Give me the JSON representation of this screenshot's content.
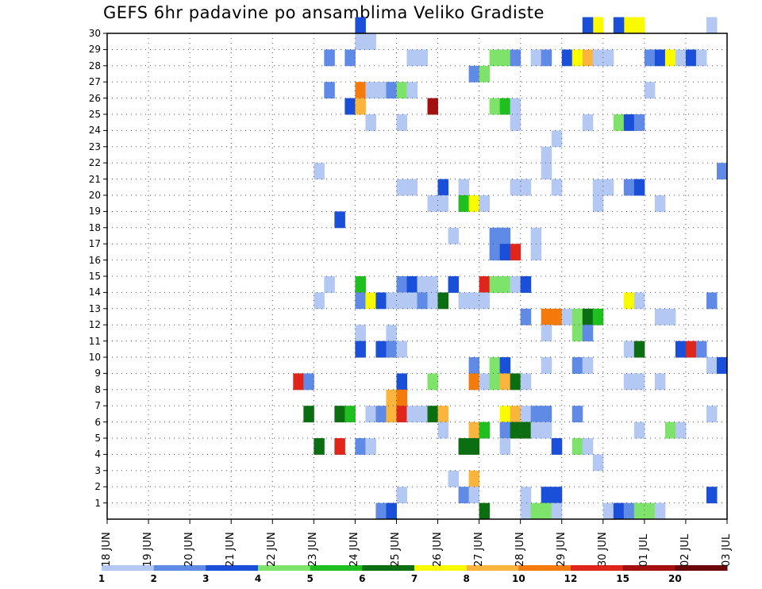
{
  "chart_data": {
    "type": "heatmap",
    "title": "GEFS 6hr padavine po ansamblima Veliko Gradiste",
    "xlabel": "",
    "ylabel": "",
    "x_ticks": [
      "18 JUN",
      "19 JUN",
      "20 JUN",
      "21 JUN",
      "22 JUN",
      "23 JUN",
      "24 JUN",
      "25 JUN",
      "26 JUN",
      "27 JUN",
      "28 JUN",
      "29 JUN",
      "30 JUN",
      "01 JUL",
      "02 JUL",
      "03 JUL"
    ],
    "y_ticks": [
      "1",
      "2",
      "3",
      "4",
      "5",
      "6",
      "7",
      "8",
      "9",
      "10",
      "11",
      "12",
      "13",
      "14",
      "15",
      "16",
      "17",
      "18",
      "19",
      "20",
      "21",
      "22",
      "23",
      "24",
      "25",
      "26",
      "27",
      "28",
      "29",
      "30"
    ],
    "y_range": [
      0,
      30
    ],
    "time_steps_per_day": 4,
    "time_steps_total": 60,
    "grid": true,
    "legend_position": "bottom",
    "legend": {
      "labels": [
        "1",
        "2",
        "3",
        "4",
        "5",
        "6",
        "7",
        "8",
        "10",
        "12",
        "15",
        "20"
      ],
      "colors": [
        "#b3c8f2",
        "#5f8ae6",
        "#1a4fd9",
        "#7de36a",
        "#1fbf1f",
        "#0b6f12",
        "#fbfb00",
        "#fbb43c",
        "#f57a0c",
        "#e0261a",
        "#a40f0f",
        "#6b0707"
      ]
    },
    "columns_note": "value entries: [time_step_index, member, precip_mm]; time step index 0 = 18 JUN 00Z, 4 steps per day",
    "values": [
      [
        24,
        30,
        3
      ],
      [
        25,
        29,
        1
      ],
      [
        24,
        29,
        1
      ],
      [
        51,
        30,
        7
      ],
      [
        50,
        30,
        7
      ],
      [
        49,
        30,
        3
      ],
      [
        47,
        30,
        7
      ],
      [
        46,
        30,
        3
      ],
      [
        58,
        30,
        1
      ],
      [
        21,
        28,
        2
      ],
      [
        23,
        28,
        2
      ],
      [
        29,
        28,
        1
      ],
      [
        30,
        28,
        1
      ],
      [
        37,
        28,
        4
      ],
      [
        38,
        28,
        4
      ],
      [
        39,
        28,
        2
      ],
      [
        41,
        28,
        1
      ],
      [
        42,
        28,
        2
      ],
      [
        44,
        28,
        3
      ],
      [
        45,
        28,
        7
      ],
      [
        46,
        28,
        8
      ],
      [
        47,
        28,
        1
      ],
      [
        48,
        28,
        1
      ],
      [
        52,
        28,
        2
      ],
      [
        53,
        28,
        3
      ],
      [
        54,
        28,
        7
      ],
      [
        55,
        28,
        1
      ],
      [
        56,
        28,
        3
      ],
      [
        57,
        28,
        1
      ],
      [
        35,
        27,
        2
      ],
      [
        36,
        27,
        4
      ],
      [
        21,
        26,
        2
      ],
      [
        24,
        26,
        11
      ],
      [
        25,
        26,
        1
      ],
      [
        26,
        26,
        1
      ],
      [
        27,
        26,
        2
      ],
      [
        28,
        26,
        4
      ],
      [
        29,
        26,
        1
      ],
      [
        52,
        26,
        1
      ],
      [
        23,
        25,
        3
      ],
      [
        24,
        25,
        8
      ],
      [
        31,
        25,
        15
      ],
      [
        37,
        25,
        4
      ],
      [
        38,
        25,
        5
      ],
      [
        39,
        25,
        1
      ],
      [
        25,
        24,
        1
      ],
      [
        28,
        24,
        1
      ],
      [
        39,
        24,
        1
      ],
      [
        46,
        24,
        1
      ],
      [
        49,
        24,
        4
      ],
      [
        50,
        24,
        3
      ],
      [
        51,
        24,
        2
      ],
      [
        43,
        23,
        1
      ],
      [
        42,
        22,
        1
      ],
      [
        20,
        21,
        1
      ],
      [
        42,
        21,
        1
      ],
      [
        59,
        21,
        2
      ],
      [
        28,
        20,
        1
      ],
      [
        29,
        20,
        1
      ],
      [
        32,
        20,
        3
      ],
      [
        34,
        20,
        1
      ],
      [
        39,
        20,
        1
      ],
      [
        40,
        20,
        1
      ],
      [
        43,
        20,
        1
      ],
      [
        47,
        20,
        1
      ],
      [
        48,
        20,
        1
      ],
      [
        50,
        20,
        2
      ],
      [
        51,
        20,
        3
      ],
      [
        31,
        19,
        1
      ],
      [
        32,
        19,
        1
      ],
      [
        34,
        19,
        5
      ],
      [
        35,
        19,
        7
      ],
      [
        36,
        19,
        1
      ],
      [
        47,
        19,
        1
      ],
      [
        53,
        19,
        1
      ],
      [
        22,
        18,
        3
      ],
      [
        33,
        17,
        1
      ],
      [
        37,
        17,
        2
      ],
      [
        38,
        17,
        2
      ],
      [
        41,
        17,
        1
      ],
      [
        37,
        16,
        2
      ],
      [
        38,
        16,
        3
      ],
      [
        39,
        16,
        12
      ],
      [
        41,
        16,
        1
      ],
      [
        21,
        14,
        1
      ],
      [
        24,
        14,
        5
      ],
      [
        28,
        14,
        2
      ],
      [
        29,
        14,
        3
      ],
      [
        30,
        14,
        1
      ],
      [
        31,
        14,
        1
      ],
      [
        33,
        14,
        3
      ],
      [
        36,
        14,
        12
      ],
      [
        37,
        14,
        4
      ],
      [
        38,
        14,
        4
      ],
      [
        39,
        14,
        1
      ],
      [
        40,
        14,
        3
      ],
      [
        20,
        13,
        1
      ],
      [
        24,
        13,
        2
      ],
      [
        25,
        13,
        7
      ],
      [
        26,
        13,
        3
      ],
      [
        27,
        13,
        1
      ],
      [
        28,
        13,
        1
      ],
      [
        29,
        13,
        1
      ],
      [
        30,
        13,
        2
      ],
      [
        31,
        13,
        1
      ],
      [
        32,
        13,
        6
      ],
      [
        34,
        13,
        1
      ],
      [
        35,
        13,
        1
      ],
      [
        36,
        13,
        1
      ],
      [
        50,
        13,
        7
      ],
      [
        51,
        13,
        1
      ],
      [
        58,
        13,
        2
      ],
      [
        40,
        12,
        2
      ],
      [
        42,
        12,
        11
      ],
      [
        43,
        12,
        11
      ],
      [
        44,
        12,
        1
      ],
      [
        45,
        12,
        4
      ],
      [
        46,
        12,
        6
      ],
      [
        47,
        12,
        5
      ],
      [
        53,
        12,
        1
      ],
      [
        54,
        12,
        1
      ],
      [
        24,
        11,
        1
      ],
      [
        27,
        11,
        1
      ],
      [
        42,
        11,
        1
      ],
      [
        45,
        11,
        4
      ],
      [
        46,
        11,
        2
      ],
      [
        24,
        10,
        3
      ],
      [
        26,
        10,
        3
      ],
      [
        27,
        10,
        2
      ],
      [
        28,
        10,
        1
      ],
      [
        50,
        10,
        1
      ],
      [
        51,
        10,
        6
      ],
      [
        55,
        10,
        3
      ],
      [
        56,
        10,
        12
      ],
      [
        57,
        10,
        2
      ],
      [
        35,
        9,
        2
      ],
      [
        37,
        9,
        4
      ],
      [
        38,
        9,
        3
      ],
      [
        42,
        9,
        1
      ],
      [
        45,
        9,
        2
      ],
      [
        46,
        9,
        1
      ],
      [
        58,
        9,
        1
      ],
      [
        59,
        9,
        3
      ],
      [
        18,
        8,
        12
      ],
      [
        19,
        8,
        2
      ],
      [
        28,
        8,
        3
      ],
      [
        31,
        8,
        4
      ],
      [
        35,
        8,
        11
      ],
      [
        36,
        8,
        1
      ],
      [
        37,
        8,
        4
      ],
      [
        38,
        8,
        8
      ],
      [
        39,
        8,
        6
      ],
      [
        40,
        8,
        1
      ],
      [
        50,
        8,
        1
      ],
      [
        51,
        8,
        1
      ],
      [
        53,
        8,
        1
      ],
      [
        27,
        7,
        9
      ],
      [
        28,
        7,
        11
      ],
      [
        19,
        6,
        6
      ],
      [
        22,
        6,
        6
      ],
      [
        23,
        6,
        5
      ],
      [
        25,
        6,
        1
      ],
      [
        26,
        6,
        2
      ],
      [
        27,
        6,
        9
      ],
      [
        28,
        6,
        12
      ],
      [
        29,
        6,
        1
      ],
      [
        30,
        6,
        1
      ],
      [
        31,
        6,
        6
      ],
      [
        32,
        6,
        8
      ],
      [
        38,
        6,
        7
      ],
      [
        39,
        6,
        8
      ],
      [
        40,
        6,
        1
      ],
      [
        41,
        6,
        2
      ],
      [
        42,
        6,
        2
      ],
      [
        45,
        6,
        2
      ],
      [
        58,
        6,
        1
      ],
      [
        32,
        5,
        1
      ],
      [
        35,
        5,
        8
      ],
      [
        36,
        5,
        5
      ],
      [
        38,
        5,
        2
      ],
      [
        39,
        5,
        6
      ],
      [
        40,
        5,
        6
      ],
      [
        41,
        5,
        1
      ],
      [
        42,
        5,
        1
      ],
      [
        51,
        5,
        1
      ],
      [
        54,
        5,
        4
      ],
      [
        55,
        5,
        1
      ],
      [
        20,
        4,
        6
      ],
      [
        22,
        4,
        12
      ],
      [
        24,
        4,
        2
      ],
      [
        25,
        4,
        1
      ],
      [
        34,
        4,
        6
      ],
      [
        35,
        4,
        6
      ],
      [
        38,
        4,
        1
      ],
      [
        43,
        4,
        3
      ],
      [
        45,
        4,
        4
      ],
      [
        46,
        4,
        1
      ],
      [
        47,
        3,
        1
      ],
      [
        33,
        2,
        1
      ],
      [
        35,
        2,
        8
      ],
      [
        28,
        1,
        1
      ],
      [
        34,
        1,
        2
      ],
      [
        35,
        1,
        1
      ],
      [
        40,
        1,
        1
      ],
      [
        42,
        1,
        3
      ],
      [
        43,
        1,
        3
      ],
      [
        58,
        1,
        3
      ],
      [
        26,
        0,
        2
      ],
      [
        27,
        0,
        3
      ],
      [
        36,
        0,
        6
      ],
      [
        40,
        0,
        1
      ],
      [
        41,
        0,
        4
      ],
      [
        42,
        0,
        4
      ],
      [
        43,
        0,
        1
      ],
      [
        48,
        0,
        1
      ],
      [
        49,
        0,
        3
      ],
      [
        50,
        0,
        2
      ],
      [
        51,
        0,
        4
      ],
      [
        52,
        0,
        4
      ],
      [
        53,
        0,
        1
      ]
    ]
  }
}
